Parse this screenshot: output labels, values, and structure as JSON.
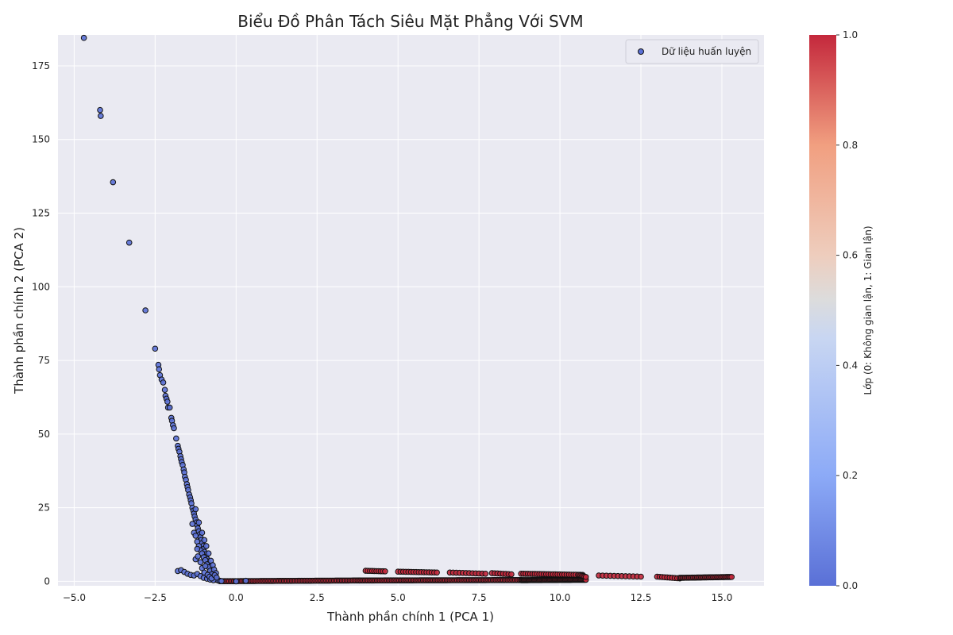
{
  "chart_data": {
    "type": "scatter",
    "title": "Biểu Đồ Phân Tách Siêu Mặt Phẳng Với SVM",
    "xlabel": "Thành phần chính 1 (PCA 1)",
    "ylabel": "Thành phần chính 2 (PCA 2)",
    "xlim": [
      -5.5,
      16.3
    ],
    "ylim": [
      -1.5,
      185.5
    ],
    "xticks": [
      -5.0,
      -2.5,
      0.0,
      2.5,
      5.0,
      7.5,
      10.0,
      12.5,
      15.0
    ],
    "xtick_labels": [
      "−5.0",
      "−2.5",
      "0.0",
      "2.5",
      "5.0",
      "7.5",
      "10.0",
      "12.5",
      "15.0"
    ],
    "yticks": [
      0,
      25,
      50,
      75,
      100,
      125,
      150,
      175
    ],
    "yticks_labels": [
      "0",
      "25",
      "50",
      "75",
      "100",
      "125",
      "150",
      "175"
    ],
    "grid": true,
    "legend": {
      "position": "top-right",
      "entries": [
        "Dữ liệu huấn luyện"
      ]
    },
    "colorbar": {
      "label": "Lớp (0: Không gian lận, 1: Gian lận)",
      "ticks": [
        "0.0",
        "0.2",
        "0.4",
        "0.6",
        "0.8",
        "1.0"
      ],
      "cmap": "coolwarm",
      "low_color": "#5a70d6",
      "mid_color": "#dcdcdc",
      "high_color": "#c4283c"
    },
    "series": [
      {
        "class": 0,
        "color": "#5a70d6",
        "points": [
          [
            -4.7,
            184.5
          ],
          [
            -4.2,
            160
          ],
          [
            -4.18,
            158
          ],
          [
            -3.8,
            135.5
          ],
          [
            -3.3,
            115
          ],
          [
            -2.8,
            92
          ],
          [
            -2.5,
            79
          ],
          [
            -2.4,
            73.5
          ],
          [
            -2.38,
            72
          ],
          [
            -2.35,
            70
          ],
          [
            -2.3,
            68.5
          ],
          [
            -2.25,
            67.5
          ],
          [
            -2.2,
            65
          ],
          [
            -2.18,
            63
          ],
          [
            -2.15,
            62
          ],
          [
            -2.12,
            61
          ],
          [
            -2.1,
            59
          ],
          [
            -2.05,
            59
          ],
          [
            -2.0,
            55.5
          ],
          [
            -1.98,
            54.5
          ],
          [
            -1.95,
            53
          ],
          [
            -1.92,
            52
          ],
          [
            -1.85,
            48.5
          ],
          [
            -1.8,
            46
          ],
          [
            -1.78,
            45
          ],
          [
            -1.75,
            44
          ],
          [
            -1.72,
            42.5
          ],
          [
            -1.7,
            41.5
          ],
          [
            -1.68,
            40.5
          ],
          [
            -1.65,
            39.5
          ],
          [
            -1.62,
            38
          ],
          [
            -1.6,
            37
          ],
          [
            -1.58,
            35.5
          ],
          [
            -1.55,
            34.5
          ],
          [
            -1.52,
            33
          ],
          [
            -1.5,
            32
          ],
          [
            -1.48,
            31
          ],
          [
            -1.45,
            29.5
          ],
          [
            -1.42,
            28.5
          ],
          [
            -1.4,
            27.5
          ],
          [
            -1.38,
            26.5
          ],
          [
            -1.35,
            25
          ],
          [
            -1.32,
            24
          ],
          [
            -1.3,
            23
          ],
          [
            -1.28,
            22
          ],
          [
            -1.25,
            21
          ],
          [
            -1.22,
            20
          ],
          [
            -1.2,
            19
          ],
          [
            -1.18,
            18
          ],
          [
            -1.15,
            17
          ],
          [
            -1.12,
            16
          ],
          [
            -1.1,
            15
          ],
          [
            -1.08,
            14
          ],
          [
            -1.05,
            13
          ],
          [
            -1.02,
            12
          ],
          [
            -1.0,
            11
          ],
          [
            -0.98,
            10
          ],
          [
            -0.95,
            9.2
          ],
          [
            -0.92,
            8.4
          ],
          [
            -0.9,
            7.6
          ],
          [
            -0.88,
            6.8
          ],
          [
            -0.85,
            6
          ],
          [
            -0.82,
            5.2
          ],
          [
            -0.8,
            4.5
          ],
          [
            -0.78,
            3.8
          ],
          [
            -0.75,
            3.2
          ],
          [
            -0.72,
            2.6
          ],
          [
            -0.7,
            2.0
          ],
          [
            -0.68,
            1.5
          ],
          [
            -0.65,
            1.1
          ],
          [
            -0.62,
            0.8
          ],
          [
            -0.6,
            0.5
          ],
          [
            -0.55,
            0.3
          ],
          [
            -0.5,
            0.2
          ],
          [
            -0.45,
            0.1
          ],
          [
            -1.35,
            19.5
          ],
          [
            -1.3,
            16.5
          ],
          [
            -1.25,
            15.5
          ],
          [
            -1.2,
            13.5
          ],
          [
            -1.15,
            12
          ],
          [
            -1.1,
            10.5
          ],
          [
            -1.05,
            9.5
          ],
          [
            -1.0,
            8.2
          ],
          [
            -0.95,
            7.2
          ],
          [
            -0.9,
            5.8
          ],
          [
            -0.85,
            4.8
          ],
          [
            -0.8,
            3.6
          ],
          [
            -0.75,
            2.4
          ],
          [
            -0.7,
            1.4
          ],
          [
            -1.25,
            24.5
          ],
          [
            -1.15,
            20
          ],
          [
            -1.05,
            16.5
          ],
          [
            -0.98,
            14
          ],
          [
            -0.92,
            12
          ],
          [
            -0.85,
            9.5
          ],
          [
            -0.78,
            7
          ],
          [
            -0.72,
            5.5
          ],
          [
            -0.68,
            4
          ],
          [
            -0.62,
            2.8
          ],
          [
            -1.8,
            3.5
          ],
          [
            -1.7,
            3.8
          ],
          [
            -1.6,
            3.2
          ],
          [
            -1.5,
            2.6
          ],
          [
            -1.4,
            2.2
          ],
          [
            -1.3,
            2.0
          ],
          [
            -1.2,
            2.5
          ],
          [
            -1.1,
            1.8
          ],
          [
            -1.0,
            1.2
          ],
          [
            -0.9,
            0.9
          ],
          [
            -0.8,
            0.6
          ],
          [
            -0.7,
            0.4
          ],
          [
            -1.25,
            7.5
          ],
          [
            -1.2,
            11
          ],
          [
            -1.18,
            8.5
          ],
          [
            -1.1,
            6.5
          ],
          [
            -1.05,
            4.5
          ],
          [
            -0.98,
            3
          ],
          [
            -0.95,
            5.2
          ],
          [
            -0.88,
            2.2
          ],
          [
            -0.82,
            1.6
          ],
          [
            -0.76,
            1.0
          ],
          [
            -0.66,
            2.1
          ],
          [
            -0.6,
            1.3
          ],
          [
            0.0,
            0.0
          ],
          [
            0.3,
            0.2
          ]
        ]
      },
      {
        "class": 1,
        "color": "#c4283c",
        "segments": [
          {
            "x0": -0.5,
            "x1": 3.8,
            "y0": 0.05,
            "y1": 0.3,
            "n": 90
          },
          {
            "x0": 3.8,
            "x1": 8.8,
            "y0": 0.3,
            "y1": 0.45,
            "n": 110
          },
          {
            "x0": 8.8,
            "x1": 10.8,
            "y0": 0.4,
            "y1": 0.55,
            "n": 70
          },
          {
            "x0": 4.0,
            "x1": 4.6,
            "y0": 3.6,
            "y1": 3.4,
            "n": 10
          },
          {
            "x0": 5.0,
            "x1": 6.2,
            "y0": 3.3,
            "y1": 3.0,
            "n": 16
          },
          {
            "x0": 6.6,
            "x1": 7.7,
            "y0": 3.0,
            "y1": 2.6,
            "n": 12
          },
          {
            "x0": 7.9,
            "x1": 8.5,
            "y0": 2.8,
            "y1": 2.4,
            "n": 8
          },
          {
            "x0": 8.8,
            "x1": 10.7,
            "y0": 2.6,
            "y1": 2.2,
            "n": 28
          },
          {
            "x0": 10.6,
            "x1": 10.8,
            "y0": 2.2,
            "y1": 1.5,
            "n": 6
          },
          {
            "x0": 11.2,
            "x1": 12.5,
            "y0": 2.0,
            "y1": 1.6,
            "n": 12
          },
          {
            "x0": 13.0,
            "x1": 13.7,
            "y0": 1.6,
            "y1": 1.0,
            "n": 10
          },
          {
            "x0": 13.7,
            "x1": 15.3,
            "y0": 1.2,
            "y1": 1.5,
            "n": 40
          }
        ]
      }
    ]
  }
}
